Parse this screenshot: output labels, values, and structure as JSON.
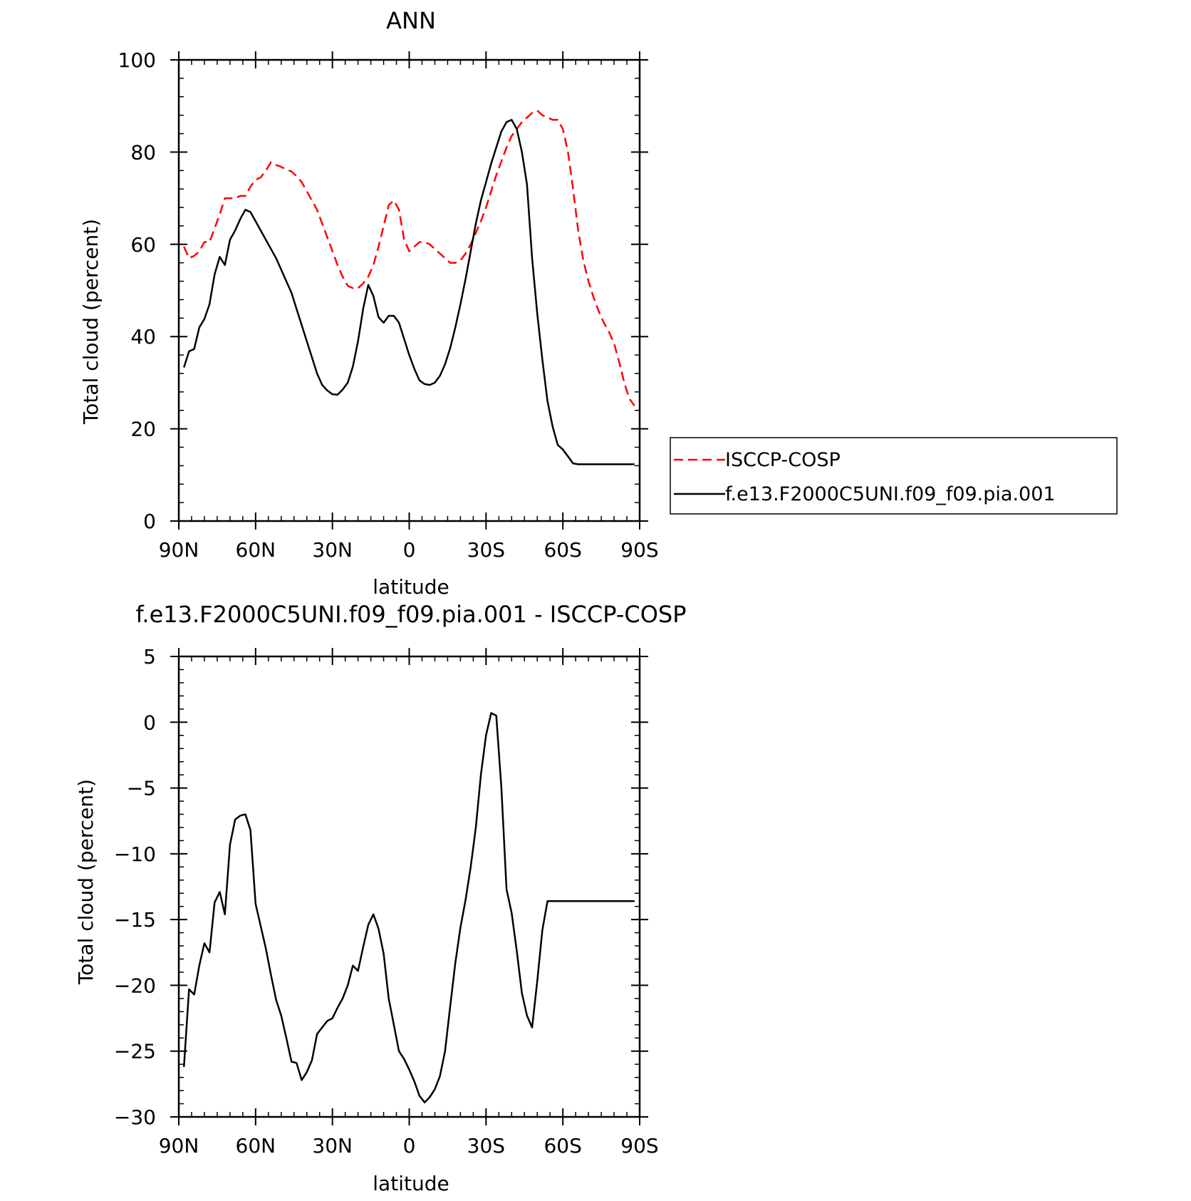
{
  "chart_data": [
    {
      "type": "line",
      "title": "ANN",
      "xlabel": "latitude",
      "ylabel": "Total cloud (percent)",
      "xlim": [
        90,
        -90
      ],
      "ylim": [
        0,
        100
      ],
      "xticks": [
        90,
        60,
        30,
        0,
        -30,
        -60,
        -90
      ],
      "xtick_labels": [
        "90N",
        "60N",
        "30N",
        "0",
        "30S",
        "60S",
        "90S"
      ],
      "yticks": [
        0,
        20,
        40,
        60,
        80,
        100
      ],
      "ytick_labels": [
        "0",
        "20",
        "40",
        "60",
        "80",
        "100"
      ],
      "legend_position": "right",
      "series": [
        {
          "name": "ISCCP-COSP",
          "color": "#ff0000",
          "dash": "dashed",
          "x": [
            88,
            86,
            84,
            82,
            80,
            78,
            76,
            74,
            72,
            70,
            68,
            66,
            64,
            62,
            60,
            58,
            56,
            54,
            52,
            50,
            48,
            46,
            44,
            42,
            40,
            38,
            36,
            34,
            32,
            30,
            28,
            26,
            24,
            22,
            20,
            18,
            16,
            14,
            12,
            10,
            8,
            6,
            4,
            2,
            0,
            -2,
            -4,
            -6,
            -8,
            -10,
            -12,
            -14,
            -16,
            -18,
            -20,
            -22,
            -24,
            -26,
            -28,
            -30,
            -32,
            -34,
            -36,
            -38,
            -40,
            -42,
            -44,
            -46,
            -48,
            -50,
            -52,
            -54,
            -56,
            -58,
            -60,
            -62,
            -64,
            -66,
            -68,
            -70,
            -72,
            -74,
            -76,
            -78,
            -80,
            -82,
            -84,
            -86,
            -88
          ],
          "values": [
            59.5,
            57,
            57.5,
            58.5,
            60.5,
            60.5,
            63.5,
            66.5,
            70,
            70,
            70,
            70.5,
            70.5,
            72.5,
            74,
            74.5,
            76,
            77.8,
            77.2,
            76.8,
            76.2,
            75.8,
            74.8,
            73.5,
            71.5,
            69.5,
            67.5,
            64.5,
            61.5,
            58.5,
            55.5,
            53,
            51,
            50.5,
            50.5,
            51.5,
            53,
            55.5,
            59.5,
            64,
            68.5,
            69.5,
            67.5,
            61,
            58.5,
            59.5,
            60.5,
            60.5,
            60,
            59,
            58,
            57,
            56,
            56,
            56.5,
            58,
            60,
            62.5,
            65,
            68,
            71.5,
            75,
            78,
            81,
            83.5,
            85,
            86.5,
            87.5,
            88.5,
            89,
            88,
            87.5,
            87,
            87,
            85,
            80,
            72,
            63,
            56.5,
            52,
            48.5,
            45.5,
            43,
            41,
            38.5,
            34.5,
            30,
            26.5,
            25
          ]
        },
        {
          "name": "f.e13.F2000C5UNI.f09_f09.pia.001",
          "color": "#000000",
          "dash": "solid",
          "x": [
            88,
            86,
            84,
            82,
            80,
            78,
            76,
            74,
            72,
            70,
            68,
            66,
            64,
            62,
            60,
            58,
            56,
            54,
            52,
            50,
            48,
            46,
            44,
            42,
            40,
            38,
            36,
            34,
            32,
            30,
            28,
            26,
            24,
            22,
            20,
            18,
            16,
            14,
            12,
            10,
            8,
            6,
            4,
            2,
            0,
            -2,
            -4,
            -6,
            -8,
            -10,
            -12,
            -14,
            -16,
            -18,
            -20,
            -22,
            -24,
            -26,
            -28,
            -30,
            -32,
            -34,
            -36,
            -38,
            -40,
            -42,
            -44,
            -46,
            -48,
            -50,
            -52,
            -54,
            -56,
            -58,
            -60,
            -62,
            -64,
            -66,
            -68,
            -70,
            -72,
            -74,
            -76,
            -78,
            -80,
            -82,
            -84,
            -86,
            -88
          ],
          "values": [
            33.3,
            36.8,
            37.3,
            42,
            43.8,
            47,
            53.5,
            57.3,
            55.5,
            61,
            63,
            65.5,
            67.5,
            67,
            65,
            63,
            61,
            59,
            57,
            54.5,
            52,
            49.5,
            46,
            42.5,
            39,
            35.5,
            32,
            29.5,
            28.3,
            27.5,
            27.4,
            28.5,
            30,
            33.5,
            39,
            46,
            51.2,
            48.8,
            44.2,
            43,
            44.5,
            44.5,
            43,
            39.5,
            36,
            33,
            30.5,
            29.7,
            29.5,
            30,
            31.5,
            34,
            37.5,
            42,
            47,
            52.5,
            58.5,
            64.5,
            69.5,
            73.5,
            77.5,
            81,
            84.5,
            86.5,
            87,
            85,
            80,
            73,
            57,
            45,
            35,
            26,
            20.5,
            16.5,
            15.5,
            14,
            12.5,
            12.3,
            12.3,
            12.3,
            12.3,
            12.3,
            12.3,
            12.3,
            12.3,
            12.3,
            12.3,
            12.3,
            12.3
          ]
        }
      ]
    },
    {
      "type": "line",
      "title": "f.e13.F2000C5UNI.f09_f09.pia.001 - ISCCP-COSP",
      "xlabel": "latitude",
      "ylabel": "Total cloud (percent)",
      "xlim": [
        90,
        -90
      ],
      "ylim": [
        -30,
        5
      ],
      "xticks": [
        90,
        60,
        30,
        0,
        -30,
        -60,
        -90
      ],
      "xtick_labels": [
        "90N",
        "60N",
        "30N",
        "0",
        "30S",
        "60S",
        "90S"
      ],
      "yticks": [
        5,
        0,
        -5,
        -10,
        -15,
        -20,
        -25,
        -30
      ],
      "ytick_labels": [
        "5",
        "0",
        "−5",
        "−10",
        "−15",
        "−20",
        "−25",
        "−30"
      ],
      "series": [
        {
          "color": "#000000",
          "dash": "solid",
          "x": [
            88,
            86,
            84,
            82,
            80,
            78,
            76,
            74,
            72,
            70,
            68,
            66,
            64,
            62,
            60,
            58,
            56,
            54,
            52,
            50,
            48,
            46,
            44,
            42,
            40,
            38,
            36,
            34,
            32,
            30,
            28,
            26,
            24,
            22,
            20,
            18,
            16,
            14,
            12,
            10,
            8,
            6,
            4,
            2,
            0,
            -2,
            -4,
            -6,
            -8,
            -10,
            -12,
            -14,
            -16,
            -18,
            -20,
            -22,
            -24,
            -26,
            -28,
            -30,
            -32,
            -34,
            -36,
            -38,
            -40,
            -42,
            -44,
            -46,
            -48,
            -50,
            -52,
            -54,
            -56,
            -58,
            -60,
            -62,
            -64,
            -66,
            -68,
            -70,
            -72,
            -74,
            -76,
            -78,
            -80,
            -82,
            -84,
            -86,
            -88
          ],
          "values": [
            -26.2,
            -20.3,
            -20.7,
            -18.5,
            -16.8,
            -17.5,
            -13.7,
            -12.9,
            -14.6,
            -9.3,
            -7.4,
            -7.1,
            -7,
            -8.2,
            -13.8,
            -15.5,
            -17.2,
            -19.2,
            -21.1,
            -22.3,
            -24,
            -25.8,
            -25.9,
            -27.2,
            -26.6,
            -25.7,
            -23.7,
            -23.2,
            -22.7,
            -22.5,
            -21.7,
            -21,
            -20,
            -18.5,
            -18.9,
            -17.1,
            -15.4,
            -14.6,
            -15.7,
            -17.6,
            -21,
            -23,
            -25,
            -25.6,
            -26.4,
            -27.3,
            -28.4,
            -28.9,
            -28.5,
            -27.9,
            -26.9,
            -25,
            -21.6,
            -18.3,
            -15.6,
            -13.5,
            -11,
            -8,
            -4,
            -1,
            0.7,
            0.5,
            -5,
            -12.7,
            -14.5,
            -17.4,
            -20.6,
            -22.3,
            -23.2,
            -19.7,
            -15.8,
            -13.6,
            -13.6,
            -13.6,
            -13.6,
            -13.6,
            -13.6,
            -13.6,
            -13.6,
            -13.6,
            -13.6,
            -13.6,
            -13.6,
            -13.6,
            -13.6,
            -13.6,
            -13.6,
            -13.6,
            -13.6
          ]
        }
      ]
    }
  ]
}
